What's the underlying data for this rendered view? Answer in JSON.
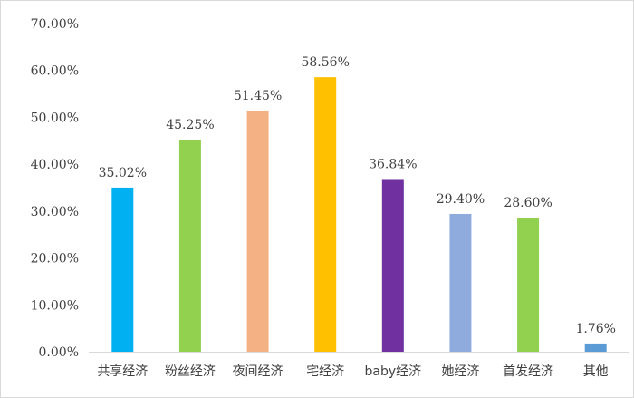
{
  "chart_data": {
    "type": "bar",
    "title": "",
    "xlabel": "",
    "ylabel": "",
    "categories": [
      "共享经济",
      "粉丝经济",
      "夜间经济",
      "宅经济",
      "baby经济",
      "她经济",
      "首发经济",
      "其他"
    ],
    "values": [
      35.02,
      45.25,
      51.45,
      58.56,
      36.84,
      29.4,
      28.6,
      1.76
    ],
    "value_labels": [
      "35.02%",
      "45.25%",
      "51.45%",
      "58.56%",
      "36.84%",
      "29.40%",
      "28.60%",
      "1.76%"
    ],
    "colors": [
      "#00b0f0",
      "#92d050",
      "#f4b183",
      "#ffc000",
      "#7030a0",
      "#8faadc",
      "#92d050",
      "#5b9bd5"
    ],
    "ylim": [
      0,
      70
    ],
    "yticks": [
      0,
      10,
      20,
      30,
      40,
      50,
      60,
      70
    ],
    "ytick_labels": [
      "0.00%",
      "10.00%",
      "20.00%",
      "30.00%",
      "40.00%",
      "50.00%",
      "60.00%",
      "70.00%"
    ],
    "grid": false,
    "legend": "none"
  }
}
